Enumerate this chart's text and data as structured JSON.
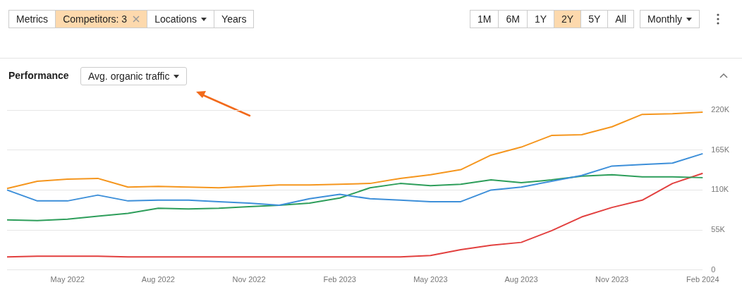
{
  "chart_data": {
    "type": "line",
    "annotations": [
      "Metrics",
      "Competitors: 3",
      "Locations",
      "Years",
      "1M",
      "6M",
      "1Y",
      "2Y",
      "5Y",
      "All",
      "Monthly",
      "Performance",
      "Avg. organic traffic"
    ],
    "categories": [
      null,
      null,
      "May 2022",
      null,
      null,
      "Aug 2022",
      null,
      null,
      "Nov 2022",
      null,
      null,
      "Feb 2023",
      null,
      null,
      "May 2023",
      null,
      null,
      "Aug 2023",
      null,
      null,
      "Nov 2023",
      null,
      null,
      "Feb 2024"
    ],
    "series": [
      {
        "color": "#f5961e",
        "values": [
          112,
          122,
          125,
          126,
          114,
          115,
          114,
          113,
          115,
          117,
          117,
          118,
          119,
          126,
          131,
          138,
          158,
          169,
          185,
          186,
          197,
          214,
          215,
          217
        ]
      },
      {
        "color": "#3d8fd9",
        "values": [
          110,
          95,
          95,
          103,
          95,
          96,
          96,
          94,
          92,
          89,
          98,
          104,
          98,
          96,
          94,
          94,
          110,
          114,
          122,
          130,
          143,
          145,
          147,
          160
        ]
      },
      {
        "color": "#2e9e5b",
        "values": [
          69,
          68,
          70,
          74,
          78,
          85,
          84,
          85,
          87,
          89,
          92,
          99,
          113,
          119,
          116,
          118,
          124,
          120,
          124,
          129,
          131,
          128,
          128,
          127
        ]
      },
      {
        "color": "#e2403f",
        "values": [
          18,
          19,
          19,
          19,
          18,
          18,
          18,
          18,
          18,
          18,
          18,
          18,
          18,
          18,
          20,
          28,
          34,
          38,
          54,
          73,
          86,
          96,
          119,
          133
        ]
      }
    ],
    "ylim": [
      0,
      220
    ],
    "yticks": [
      {
        "value": 0,
        "label": "0"
      },
      {
        "value": 55,
        "label": "55K"
      },
      {
        "value": 110,
        "label": "110K"
      },
      {
        "value": 165,
        "label": "165K"
      },
      {
        "value": 220,
        "label": "220K"
      }
    ],
    "grid": "y",
    "marker": "none",
    "line_style": "solid",
    "legend": false
  }
}
